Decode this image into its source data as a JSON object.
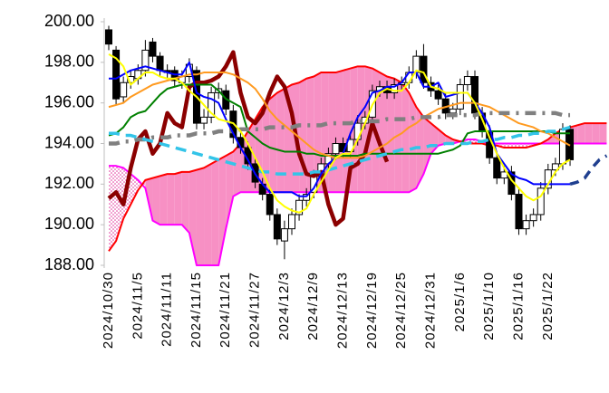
{
  "chart_data": {
    "type": "candlestick",
    "categories": [
      "2024/10/30",
      null,
      null,
      null,
      "2024/11/5",
      null,
      null,
      null,
      "2024/11/11",
      null,
      null,
      null,
      "2024/11/15",
      null,
      null,
      null,
      "2024/11/21",
      null,
      null,
      null,
      "2024/11/27",
      null,
      null,
      null,
      "2024/12/3",
      null,
      null,
      null,
      "2024/12/9",
      null,
      null,
      null,
      "2024/12/13",
      null,
      null,
      null,
      "2024/12/19",
      null,
      null,
      null,
      "2024/12/25",
      null,
      null,
      null,
      "2024/12/31",
      null,
      null,
      null,
      "2025/1/6",
      null,
      null,
      null,
      "2025/1/10",
      null,
      null,
      null,
      "2025/1/16",
      null,
      null,
      null,
      "2025/1/22",
      null,
      null,
      null,
      null,
      null,
      null,
      null,
      null
    ],
    "ylim": [
      188,
      200
    ],
    "yticks": [
      {
        "value": 188,
        "label": "188.00"
      },
      {
        "value": 190,
        "label": "190.00"
      },
      {
        "value": 192,
        "label": "192.00"
      },
      {
        "value": 194,
        "label": "194.00"
      },
      {
        "value": 196,
        "label": "196.00"
      },
      {
        "value": 198,
        "label": "198.00"
      },
      {
        "value": 200,
        "label": "200.00"
      }
    ],
    "grid": false,
    "up_color": "#ffffff",
    "down_color": "#000000",
    "open": [
      199.6,
      198.6,
      196.3,
      197.0,
      197.2,
      197.6,
      199.0,
      198.3,
      197.6,
      197.6,
      197.0,
      197.3,
      197.6,
      195.0,
      195.3,
      196.5,
      196.6,
      195.6,
      194.3,
      193.8,
      193.0,
      192.0,
      191.5,
      190.5,
      189.2,
      189.8,
      190.5,
      191.2,
      191.6,
      192.4,
      193.0,
      193.5,
      194.0,
      193.6,
      194.2,
      195.0,
      195.3,
      196.6,
      196.8,
      196.5,
      196.9,
      197.0,
      197.5,
      198.3,
      197.0,
      196.6,
      196.2,
      195.5,
      195.7,
      196.9,
      197.3,
      195.5,
      194.6,
      193.3,
      192.3,
      192.6,
      191.5,
      189.8,
      190.2,
      190.5,
      191.8,
      192.7,
      193.0,
      194.7,
      null,
      null,
      null,
      null,
      null
    ],
    "high": [
      199.8,
      198.8,
      197.3,
      197.6,
      197.9,
      199.1,
      199.2,
      198.5,
      197.9,
      197.8,
      197.6,
      198.2,
      197.8,
      195.7,
      196.8,
      197.0,
      196.9,
      195.9,
      194.6,
      194.1,
      193.3,
      192.3,
      191.8,
      190.8,
      190.2,
      190.8,
      191.5,
      191.8,
      192.7,
      193.3,
      193.8,
      194.3,
      194.3,
      194.5,
      195.4,
      195.6,
      196.9,
      197.1,
      197.1,
      197.2,
      197.3,
      197.8,
      198.6,
      198.9,
      197.3,
      196.9,
      196.5,
      196.0,
      197.2,
      197.6,
      197.6,
      195.8,
      194.9,
      193.6,
      192.9,
      192.9,
      191.8,
      190.5,
      190.8,
      192.1,
      193.0,
      193.3,
      195.0,
      194.9,
      null,
      null,
      null,
      null,
      null
    ],
    "low": [
      198.6,
      195.9,
      196.0,
      196.7,
      196.9,
      197.3,
      198.0,
      197.3,
      197.2,
      196.8,
      196.7,
      197.0,
      194.7,
      194.7,
      195.0,
      196.2,
      195.4,
      194.0,
      193.5,
      192.7,
      191.8,
      191.2,
      190.2,
      189.0,
      188.3,
      189.5,
      190.2,
      190.9,
      191.3,
      192.1,
      192.7,
      193.2,
      193.3,
      193.3,
      193.9,
      194.7,
      195.0,
      196.3,
      196.2,
      196.2,
      196.6,
      196.7,
      197.2,
      196.7,
      196.3,
      195.9,
      195.2,
      195.2,
      195.4,
      196.6,
      195.2,
      194.3,
      193.0,
      192.0,
      192.0,
      191.2,
      189.5,
      189.5,
      189.9,
      190.2,
      191.5,
      192.4,
      192.7,
      192.9,
      null,
      null,
      null,
      null,
      null
    ],
    "close": [
      198.9,
      196.2,
      197.0,
      197.3,
      197.6,
      198.6,
      198.3,
      197.6,
      197.5,
      197.1,
      197.3,
      197.9,
      195.0,
      195.3,
      196.5,
      196.7,
      195.7,
      194.3,
      193.8,
      193.0,
      192.1,
      191.5,
      190.5,
      189.3,
      189.8,
      190.5,
      191.2,
      191.5,
      192.4,
      193.0,
      193.5,
      194.0,
      193.6,
      194.2,
      195.0,
      195.3,
      196.6,
      196.8,
      196.5,
      196.9,
      197.0,
      197.5,
      198.3,
      197.0,
      196.6,
      196.2,
      195.5,
      195.7,
      196.9,
      197.3,
      195.5,
      194.6,
      193.3,
      192.3,
      192.6,
      191.5,
      189.8,
      190.2,
      190.5,
      191.8,
      192.7,
      193.0,
      194.7,
      193.2,
      null,
      null,
      null,
      null,
      null
    ],
    "cloud": {
      "fill_color": "#f790c4",
      "hatch_color": "#e0309a",
      "span_a": {
        "color": "#ff0000",
        "values": [
          188.7,
          189.2,
          190.3,
          191.0,
          191.7,
          192.2,
          192.3,
          192.4,
          192.5,
          192.5,
          192.6,
          192.6,
          192.7,
          192.8,
          193.0,
          193.2,
          193.4,
          193.6,
          194.0,
          194.6,
          195.2,
          195.8,
          196.2,
          196.5,
          196.7,
          196.9,
          197.0,
          197.2,
          197.3,
          197.5,
          197.5,
          197.5,
          197.6,
          197.7,
          197.8,
          197.8,
          197.7,
          197.5,
          197.3,
          197.2,
          197.0,
          196.5,
          195.8,
          195.3,
          195.0,
          194.7,
          194.4,
          194.2,
          194.1,
          194.0,
          194.0,
          194.0,
          193.9,
          193.9,
          193.8,
          193.8,
          193.8,
          193.8,
          193.9,
          194.0,
          194.2,
          194.5,
          194.7,
          194.8,
          194.9,
          195.0,
          195.0,
          195.0,
          195.0
        ]
      },
      "span_b": {
        "color": "#ff00ff",
        "values": [
          192.9,
          192.9,
          192.8,
          192.5,
          192.2,
          191.8,
          190.2,
          190.0,
          190.0,
          190.0,
          190.0,
          189.6,
          188.0,
          188.0,
          188.0,
          188.0,
          189.8,
          191.4,
          191.6,
          191.6,
          191.6,
          191.6,
          191.6,
          191.6,
          191.6,
          191.6,
          191.6,
          191.6,
          191.6,
          191.6,
          191.6,
          191.6,
          191.6,
          191.6,
          191.6,
          191.6,
          191.6,
          191.6,
          191.6,
          191.6,
          191.6,
          191.6,
          191.8,
          192.5,
          193.5,
          193.9,
          194.0,
          194.0,
          194.1,
          194.2,
          194.2,
          194.1,
          194.0,
          194.0,
          194.0,
          194.0,
          194.0,
          194.0,
          194.0,
          194.0,
          194.0,
          194.0,
          194.0,
          194.0,
          194.0,
          194.0,
          194.0,
          194.0,
          194.0
        ]
      }
    },
    "series": [
      {
        "color": "#8b0000",
        "width": 4.5,
        "dash": "none",
        "values": [
          191.3,
          191.6,
          191.0,
          192.8,
          194.2,
          194.6,
          193.5,
          194.0,
          195.5,
          195.0,
          194.8,
          196.8,
          197.0,
          197.0,
          197.1,
          197.3,
          197.8,
          198.5,
          196.5,
          195.3,
          195.0,
          195.5,
          196.5,
          197.3,
          196.8,
          195.5,
          193.5,
          192.5,
          192.4,
          192.6,
          191.0,
          190.0,
          190.3,
          192.8,
          193.0,
          193.5,
          195.0,
          194.0,
          193.1,
          null,
          null,
          null,
          null,
          null,
          null,
          null,
          null,
          null,
          null,
          null,
          null,
          null,
          null,
          null,
          null,
          null,
          null,
          null,
          null,
          null,
          null,
          null,
          null,
          null,
          null,
          null,
          null,
          null,
          null
        ]
      },
      {
        "color": "#008000",
        "width": 2,
        "dash": "none",
        "values": [
          194.4,
          194.5,
          194.8,
          195.3,
          195.5,
          195.6,
          196.0,
          196.4,
          196.7,
          196.8,
          196.9,
          196.9,
          196.9,
          196.9,
          196.9,
          196.6,
          196.2,
          196.0,
          195.8,
          194.6,
          194.3,
          194.0,
          193.8,
          193.7,
          193.6,
          193.6,
          193.6,
          193.5,
          193.5,
          193.4,
          193.4,
          193.4,
          193.4,
          193.4,
          193.4,
          193.5,
          193.5,
          193.5,
          193.5,
          193.5,
          193.5,
          193.5,
          193.5,
          193.5,
          193.5,
          193.5,
          193.6,
          193.7,
          193.9,
          194.5,
          194.6,
          194.6,
          194.6,
          194.6,
          194.6,
          194.6,
          194.6,
          194.6,
          194.6,
          194.6,
          194.6,
          194.5,
          194.5,
          194.5,
          null,
          null,
          null,
          null,
          null
        ]
      },
      {
        "color": "#ff9a1f",
        "width": 2,
        "dash": "none",
        "values": [
          195.8,
          195.9,
          196.0,
          196.3,
          196.5,
          196.7,
          196.9,
          197.0,
          197.1,
          197.2,
          197.3,
          197.4,
          197.4,
          197.5,
          197.5,
          197.5,
          197.5,
          197.4,
          197.2,
          197.0,
          196.7,
          196.2,
          195.6,
          195.2,
          194.9,
          194.6,
          194.3,
          194.0,
          193.7,
          193.5,
          193.4,
          193.3,
          193.3,
          193.3,
          193.3,
          193.4,
          193.6,
          193.8,
          194.0,
          194.3,
          194.5,
          194.8,
          195.0,
          195.3,
          195.5,
          195.7,
          195.8,
          195.9,
          196.0,
          196.0,
          196.0,
          195.9,
          195.8,
          195.6,
          195.4,
          195.2,
          195.0,
          194.9,
          194.8,
          194.6,
          194.5,
          194.3,
          194.1,
          193.9,
          null,
          null,
          null,
          null,
          null
        ]
      },
      {
        "color": "#808080",
        "width": 4.5,
        "dash": "12,7,3,7",
        "values": [
          194.0,
          194.0,
          194.1,
          194.1,
          194.2,
          194.2,
          194.3,
          194.3,
          194.3,
          194.4,
          194.4,
          194.4,
          194.5,
          194.5,
          194.5,
          194.6,
          194.6,
          194.6,
          194.7,
          194.7,
          194.7,
          194.7,
          194.8,
          194.8,
          194.8,
          194.8,
          194.9,
          194.9,
          194.9,
          194.9,
          195.0,
          195.0,
          195.0,
          195.0,
          195.1,
          195.1,
          195.1,
          195.1,
          195.2,
          195.2,
          195.2,
          195.2,
          195.3,
          195.3,
          195.3,
          195.3,
          195.4,
          195.4,
          195.4,
          195.4,
          195.4,
          195.5,
          195.5,
          195.5,
          195.5,
          195.5,
          195.5,
          195.5,
          195.5,
          195.5,
          195.5,
          195.5,
          195.4,
          195.4,
          null,
          null,
          null,
          null,
          null
        ]
      },
      {
        "color": "#33c4e8",
        "width": 3.5,
        "dash": "12,7",
        "values": [
          194.5,
          194.5,
          194.4,
          194.4,
          194.3,
          194.2,
          194.1,
          194.0,
          193.9,
          193.8,
          193.7,
          193.6,
          193.5,
          193.4,
          193.3,
          193.2,
          193.1,
          193.0,
          192.9,
          192.8,
          192.7,
          192.6,
          192.6,
          192.5,
          192.5,
          192.5,
          192.5,
          192.5,
          192.6,
          192.6,
          192.7,
          192.8,
          192.9,
          193.0,
          193.1,
          193.2,
          193.3,
          193.4,
          193.5,
          193.6,
          193.7,
          193.7,
          193.8,
          193.8,
          193.9,
          193.9,
          194.0,
          194.0,
          194.0,
          194.0,
          194.1,
          194.1,
          194.2,
          194.2,
          194.3,
          194.3,
          194.4,
          194.4,
          194.5,
          194.5,
          194.6,
          194.6,
          194.7,
          194.8,
          null,
          null,
          null,
          null,
          null
        ]
      },
      {
        "color": "#0000ff",
        "width": 2,
        "dash": "none",
        "values": [
          197.2,
          197.2,
          197.4,
          197.6,
          197.7,
          197.8,
          197.7,
          197.6,
          197.5,
          197.4,
          197.4,
          198.0,
          196.5,
          196.3,
          196.2,
          196.0,
          195.2,
          194.5,
          193.8,
          193.2,
          192.5,
          192.0,
          191.6,
          191.6,
          191.6,
          191.6,
          191.4,
          191.4,
          191.8,
          192.5,
          193.0,
          193.3,
          193.5,
          194.5,
          195.3,
          195.8,
          196.5,
          196.6,
          196.8,
          196.8,
          197.0,
          197.5,
          197.5,
          196.8,
          196.8,
          197.0,
          196.3,
          196.4,
          196.5,
          196.5,
          196.0,
          195.5,
          194.8,
          193.5,
          193.0,
          192.5,
          192.3,
          192.2,
          192.0,
          192.0,
          192.0,
          192.0,
          192.0,
          192.0,
          null,
          null,
          null,
          null,
          null
        ]
      },
      {
        "color": "#1f3f8f",
        "width": 3.5,
        "dash": "10,7",
        "values": [
          null,
          null,
          null,
          null,
          null,
          null,
          null,
          null,
          null,
          null,
          null,
          null,
          null,
          null,
          null,
          null,
          null,
          null,
          null,
          null,
          null,
          null,
          null,
          null,
          null,
          null,
          null,
          null,
          null,
          null,
          null,
          null,
          null,
          null,
          null,
          null,
          null,
          null,
          null,
          null,
          null,
          null,
          null,
          null,
          null,
          null,
          null,
          null,
          null,
          null,
          null,
          null,
          null,
          null,
          null,
          null,
          null,
          null,
          null,
          null,
          null,
          null,
          null,
          192.0,
          192.1,
          192.3,
          192.8,
          193.2,
          193.4
        ]
      },
      {
        "color": "#ffff00",
        "width": 2,
        "dash": "none",
        "values": [
          198.4,
          198.2,
          197.8,
          196.9,
          197.2,
          197.5,
          197.5,
          197.3,
          197.2,
          197.2,
          197.0,
          196.6,
          196.3,
          195.9,
          195.5,
          195.2,
          195.1,
          195.0,
          194.6,
          194.0,
          193.3,
          192.6,
          191.8,
          191.2,
          190.9,
          190.7,
          190.6,
          190.8,
          191.5,
          192.1,
          192.7,
          193.3,
          193.5,
          193.5,
          194.2,
          195.0,
          195.9,
          196.5,
          196.7,
          196.6,
          196.6,
          197.0,
          197.6,
          197.5,
          196.8,
          196.7,
          196.5,
          196.5,
          196.5,
          196.5,
          196.0,
          195.2,
          194.3,
          193.5,
          192.8,
          192.2,
          191.8,
          191.4,
          191.2,
          191.4,
          192.0,
          192.6,
          193.0,
          193.2,
          null,
          null,
          null,
          null,
          null
        ]
      }
    ]
  }
}
